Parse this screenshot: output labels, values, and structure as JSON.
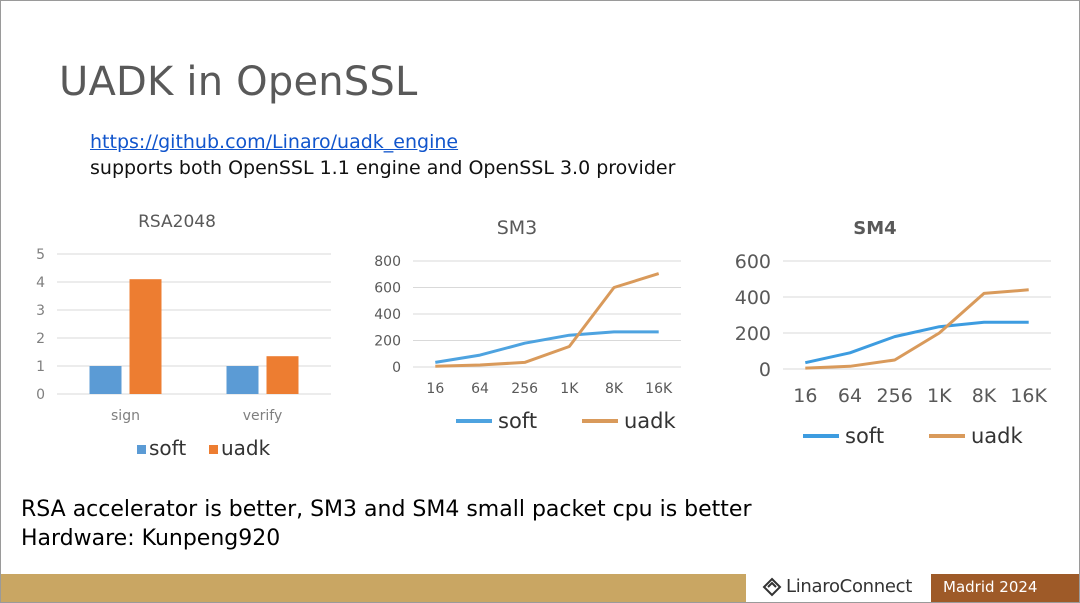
{
  "slide": {
    "title": "UADK in OpenSSL",
    "link": "https://github.com/Linaro/uadk_engine",
    "subtitle": "supports both OpenSSL 1.1 engine and OpenSSL 3.0 provider",
    "bottom_lines": [
      "RSA accelerator is better, SM3 and SM4 small packet cpu is better",
      "Hardware: Kunpeng920"
    ]
  },
  "footer": {
    "logo_icon": "linaro-logo-icon",
    "logo_text": "LinaroConnect",
    "event": "Madrid 2024",
    "band_color": "#c9a663",
    "event_color": "#9e5a28"
  },
  "chart_data": [
    {
      "type": "bar",
      "title": "RSA2048",
      "categories": [
        "sign",
        "verify"
      ],
      "series": [
        {
          "name": "soft",
          "values": [
            1,
            1
          ],
          "color": "#5b9bd5"
        },
        {
          "name": "uadk",
          "values": [
            4.1,
            1.35
          ],
          "color": "#ed7d31"
        }
      ],
      "ylim": [
        0,
        5
      ],
      "yticks": [
        "0",
        "1",
        "2",
        "3",
        "4",
        "5"
      ],
      "grid": true,
      "legend": "bottom"
    },
    {
      "type": "line",
      "title": "SM3",
      "categories": [
        "16",
        "64",
        "256",
        "1K",
        "8K",
        "16K"
      ],
      "series": [
        {
          "name": "soft",
          "values": [
            35,
            90,
            180,
            240,
            265,
            265
          ],
          "color": "#4ea3e0"
        },
        {
          "name": "uadk",
          "values": [
            5,
            15,
            35,
            155,
            600,
            705
          ],
          "color": "#d99a5b"
        }
      ],
      "ylim": [
        0,
        800
      ],
      "yticks": [
        "0",
        "200",
        "400",
        "600",
        "800"
      ],
      "grid": true,
      "legend": "bottom"
    },
    {
      "type": "line",
      "title": "SM4",
      "categories": [
        "16",
        "64",
        "256",
        "1K",
        "8K",
        "16K"
      ],
      "series": [
        {
          "name": "soft",
          "values": [
            35,
            90,
            180,
            235,
            260,
            260
          ],
          "color": "#3d9ce0"
        },
        {
          "name": "uadk",
          "values": [
            5,
            15,
            50,
            200,
            420,
            440
          ],
          "color": "#d99a5b"
        }
      ],
      "ylim": [
        0,
        600
      ],
      "yticks": [
        "0",
        "200",
        "400",
        "600"
      ],
      "grid": true,
      "legend": "bottom"
    }
  ]
}
